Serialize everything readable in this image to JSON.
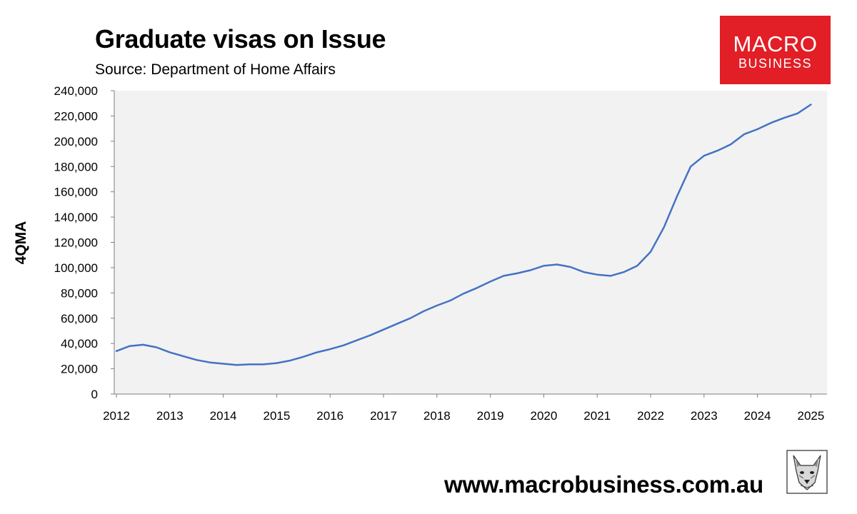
{
  "header": {
    "title": "Graduate visas on Issue",
    "source": "Source: Department of Home Affairs"
  },
  "logo": {
    "line1": "MACRO",
    "line2": "BUSINESS",
    "color": "#e21e26"
  },
  "footer": {
    "url": "www.macrobusiness.com.au"
  },
  "chart_data": {
    "type": "line",
    "title": "Graduate visas on Issue",
    "ylabel": "4QMA",
    "xlabel": "",
    "ylim": [
      0,
      240000
    ],
    "xlim": [
      2012,
      2025.3
    ],
    "yticks": [
      "0",
      "20,000",
      "40,000",
      "60,000",
      "80,000",
      "100,000",
      "120,000",
      "140,000",
      "160,000",
      "180,000",
      "200,000",
      "220,000",
      "240,000"
    ],
    "xticks": [
      "2012",
      "2013",
      "2014",
      "2015",
      "2016",
      "2017",
      "2018",
      "2019",
      "2020",
      "2021",
      "2022",
      "2023",
      "2024",
      "2025"
    ],
    "grid": false,
    "plot_background": "#f2f2f2",
    "series": [
      {
        "color": "#4472c4",
        "x": [
          2012.0,
          2012.25,
          2012.5,
          2012.75,
          2013.0,
          2013.25,
          2013.5,
          2013.75,
          2014.0,
          2014.25,
          2014.5,
          2014.75,
          2015.0,
          2015.25,
          2015.5,
          2015.75,
          2016.0,
          2016.25,
          2016.5,
          2016.75,
          2017.0,
          2017.25,
          2017.5,
          2017.75,
          2018.0,
          2018.25,
          2018.5,
          2018.75,
          2019.0,
          2019.25,
          2019.5,
          2019.75,
          2020.0,
          2020.25,
          2020.5,
          2020.75,
          2021.0,
          2021.25,
          2021.5,
          2021.75,
          2022.0,
          2022.25,
          2022.5,
          2022.75,
          2023.0,
          2023.25,
          2023.5,
          2023.75,
          2024.0,
          2024.25,
          2024.5,
          2024.75,
          2025.0
        ],
        "y": [
          34000,
          38000,
          39000,
          37000,
          33000,
          30000,
          27000,
          25000,
          24000,
          23000,
          23500,
          23500,
          24500,
          26500,
          29500,
          33000,
          35500,
          38500,
          42500,
          46500,
          51000,
          55500,
          60000,
          65500,
          70000,
          74000,
          79500,
          84000,
          89000,
          93500,
          95500,
          98000,
          101500,
          102500,
          100500,
          96500,
          94500,
          93500,
          96500,
          101500,
          112500,
          132000,
          157000,
          180000,
          188500,
          192500,
          197500,
          205500,
          209500,
          214500,
          218500,
          222000,
          229000
        ]
      }
    ]
  }
}
